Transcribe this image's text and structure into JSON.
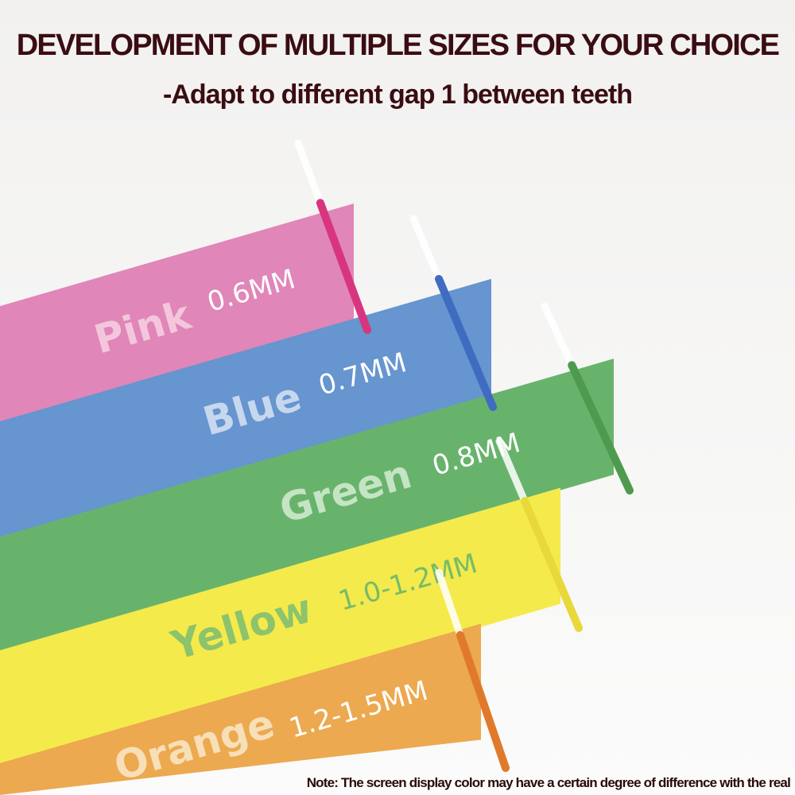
{
  "header": {
    "title": "DEVELOPMENT OF MULTIPLE SIZES FOR YOUR CHOICE",
    "subtitle": "-Adapt to different gap 1 between teeth"
  },
  "bands": [
    {
      "name": "Pink",
      "size": "0.6MM",
      "color": "#e086b8",
      "brush_color": "#d8357f",
      "name_color": "#f3c6dc",
      "size_color": "#ffffff"
    },
    {
      "name": "Blue",
      "size": "0.7MM",
      "color": "#6695cf",
      "brush_color": "#3f6cc0",
      "name_color": "#c6d7ee",
      "size_color": "#ffffff"
    },
    {
      "name": "Green",
      "size": "0.8MM",
      "color": "#68b36c",
      "brush_color": "#4e9a4e",
      "name_color": "#c5e4c3",
      "size_color": "#ffffff"
    },
    {
      "name": "Yellow",
      "size": "1.0-1.2MM",
      "color": "#f4ea4c",
      "brush_color": "#e8d83a",
      "name_color": "#8cc36c",
      "size_color": "#78bb6a"
    },
    {
      "name": "Orange",
      "size": "1.2-1.5MM",
      "color": "#eca94f",
      "brush_color": "#e07a2a",
      "name_color": "#f7dfb8",
      "size_color": "#ffffff"
    }
  ],
  "note": "Note: The screen display color may have a certain degree of difference with the real"
}
